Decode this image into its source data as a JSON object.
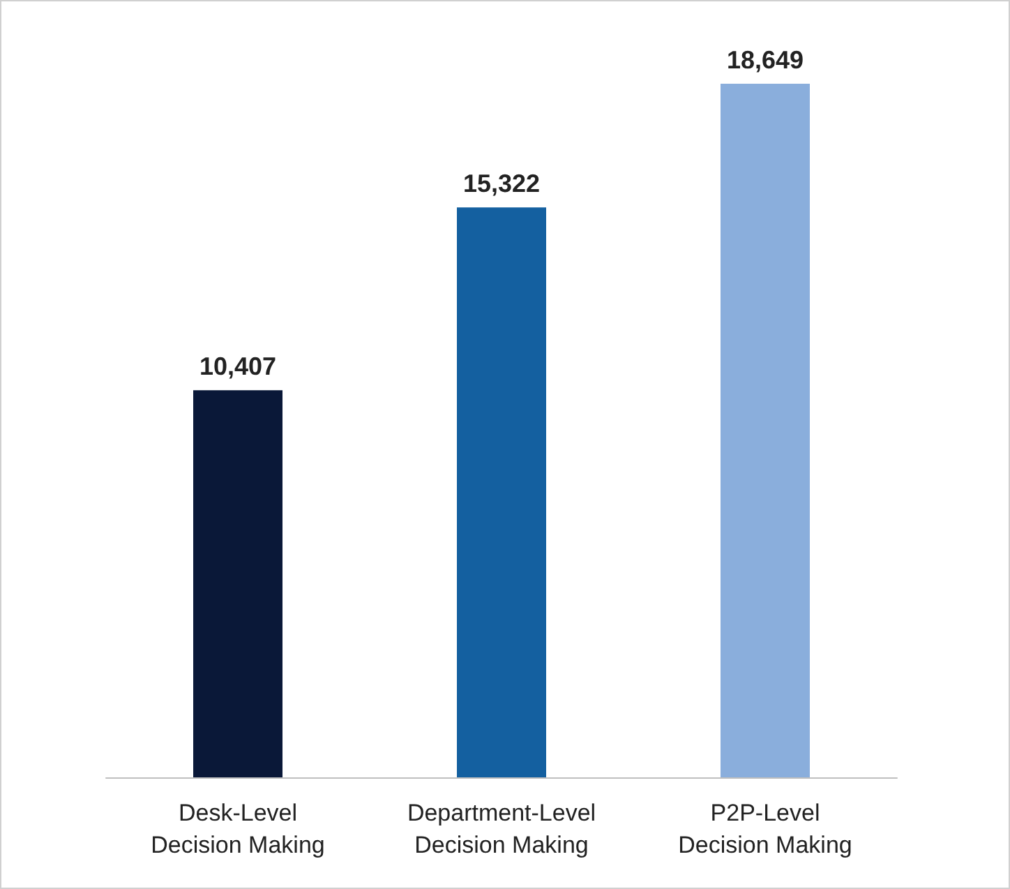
{
  "chart_data": {
    "type": "bar",
    "categories": [
      "Desk-Level\nDecision Making",
      "Department-Level\nDecision Making",
      "P2P-Level\nDecision Making"
    ],
    "values": [
      10407,
      15322,
      18649
    ],
    "colors": [
      "#0a1838",
      "#1460a0",
      "#8aaedc"
    ],
    "value_labels": [
      "10,407",
      "15,322",
      "18,649"
    ],
    "tick_labels": "x"
  }
}
